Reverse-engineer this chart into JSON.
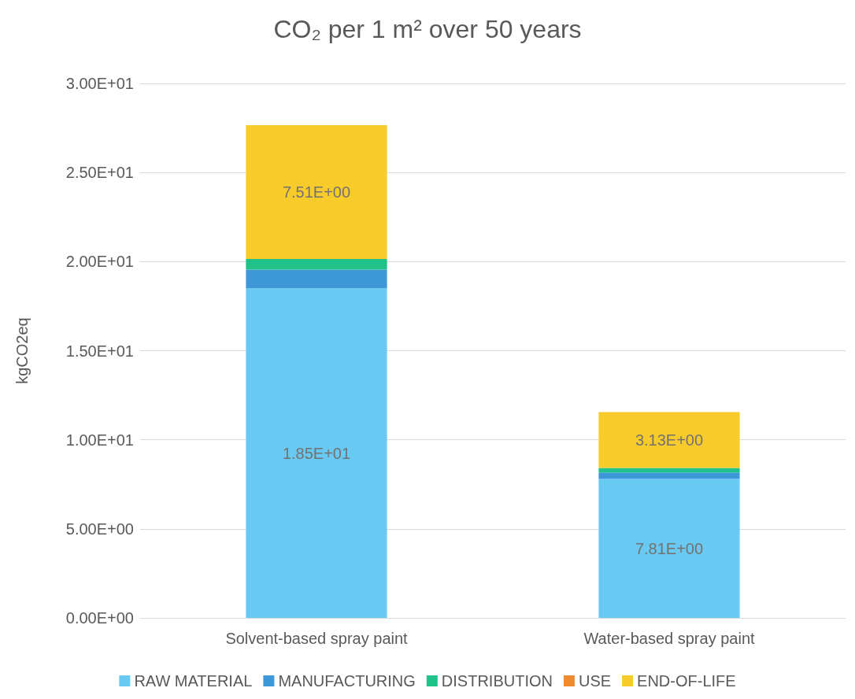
{
  "chart_data": {
    "type": "bar",
    "title": "CO₂ per 1 m² over 50 years",
    "ylabel": "kgCO2eq",
    "categories": [
      "Solvent-based spray paint",
      "Water-based spray paint"
    ],
    "stacked": true,
    "series": [
      {
        "name": "RAW MATERIAL",
        "color": "#68caf2",
        "values": [
          18.5,
          7.81
        ],
        "value_labels": [
          "1.85E+01",
          "7.81E+00"
        ]
      },
      {
        "name": "MANUFACTURING",
        "color": "#3e98d8",
        "values": [
          1.05,
          0.35
        ]
      },
      {
        "name": "DISTRIBUTION",
        "color": "#21c18a",
        "values": [
          0.6,
          0.26
        ]
      },
      {
        "name": "USE",
        "color": "#f08a2f",
        "values": [
          0,
          0
        ]
      },
      {
        "name": "END-OF-LIFE",
        "color": "#f7cc2a",
        "values": [
          7.51,
          3.13
        ],
        "value_labels": [
          "7.51E+00",
          "3.13E+00"
        ]
      }
    ],
    "ylim": [
      0,
      30
    ],
    "yticks": [
      {
        "value": 0,
        "label": "0.00E+00"
      },
      {
        "value": 5,
        "label": "5.00E+00"
      },
      {
        "value": 10,
        "label": "1.00E+01"
      },
      {
        "value": 15,
        "label": "1.50E+01"
      },
      {
        "value": 20,
        "label": "2.00E+01"
      },
      {
        "value": 25,
        "label": "2.50E+01"
      },
      {
        "value": 30,
        "label": "3.00E+01"
      }
    ],
    "grid": "y",
    "legend": "bottom"
  }
}
